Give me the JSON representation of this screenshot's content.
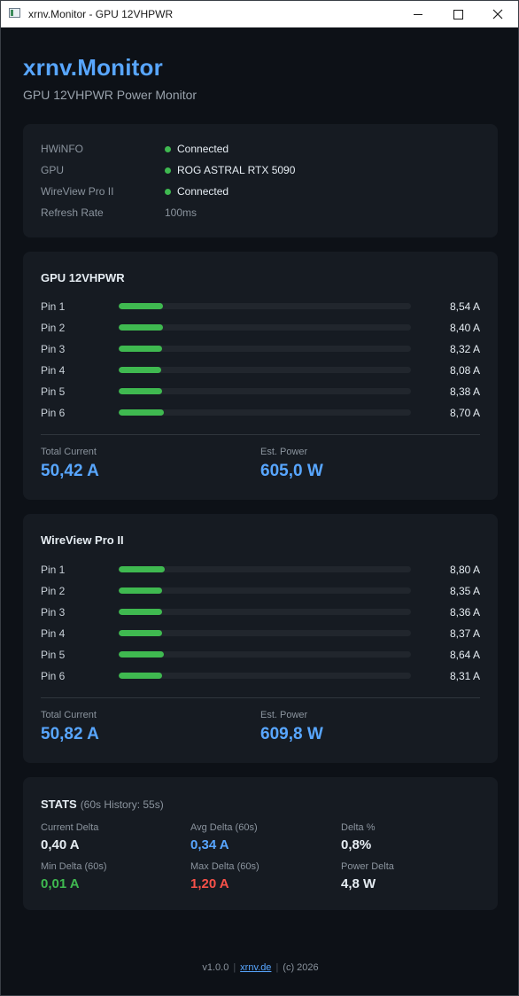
{
  "window": {
    "title": "xrnv.Monitor - GPU 12VHPWR"
  },
  "header": {
    "title": "xrnv.Monitor",
    "subtitle": "GPU 12VHPWR Power Monitor"
  },
  "status": [
    {
      "label": "HWiNFO",
      "value": "Connected",
      "indicator": "green"
    },
    {
      "label": "GPU",
      "value": "ROG ASTRAL RTX 5090",
      "indicator": "green"
    },
    {
      "label": "WireView Pro II",
      "value": "Connected",
      "indicator": "green"
    },
    {
      "label": "Refresh Rate",
      "value": "100ms",
      "indicator": null
    }
  ],
  "gpu": {
    "title": "GPU 12VHPWR",
    "pins": [
      {
        "label": "Pin 1",
        "value": "8,54 A",
        "amps": 8.54
      },
      {
        "label": "Pin 2",
        "value": "8,40 A",
        "amps": 8.4
      },
      {
        "label": "Pin 3",
        "value": "8,32 A",
        "amps": 8.32
      },
      {
        "label": "Pin 4",
        "value": "8,08 A",
        "amps": 8.08
      },
      {
        "label": "Pin 5",
        "value": "8,38 A",
        "amps": 8.38
      },
      {
        "label": "Pin 6",
        "value": "8,70 A",
        "amps": 8.7
      }
    ],
    "total_label": "Total Current",
    "total_value": "50,42 A",
    "power_label": "Est. Power",
    "power_value": "605,0 W"
  },
  "wireview": {
    "title": "WireView Pro II",
    "pins": [
      {
        "label": "Pin 1",
        "value": "8,80 A",
        "amps": 8.8
      },
      {
        "label": "Pin 2",
        "value": "8,35 A",
        "amps": 8.35
      },
      {
        "label": "Pin 3",
        "value": "8,36 A",
        "amps": 8.36
      },
      {
        "label": "Pin 4",
        "value": "8,37 A",
        "amps": 8.37
      },
      {
        "label": "Pin 5",
        "value": "8,64 A",
        "amps": 8.64
      },
      {
        "label": "Pin 6",
        "value": "8,31 A",
        "amps": 8.31
      }
    ],
    "total_label": "Total Current",
    "total_value": "50,82 A",
    "power_label": "Est. Power",
    "power_value": "609,8 W"
  },
  "bar_scale_max_amps": 56,
  "stats": {
    "title": "STATS",
    "history": "(60s History: 55s)",
    "items": [
      {
        "label": "Current Delta",
        "value": "0,40 A",
        "color": "#e6edf3"
      },
      {
        "label": "Avg Delta (60s)",
        "value": "0,34 A",
        "color": "#58a6ff"
      },
      {
        "label": "Delta %",
        "value": "0,8%",
        "color": "#e6edf3"
      },
      {
        "label": "Min Delta (60s)",
        "value": "0,01 A",
        "color": "#3fb950"
      },
      {
        "label": "Max Delta (60s)",
        "value": "1,20 A",
        "color": "#f85149"
      },
      {
        "label": "Power Delta",
        "value": "4,8 W",
        "color": "#e6edf3"
      }
    ]
  },
  "footer": {
    "version": "v1.0.0",
    "link": "xrnv.de",
    "copyright": "(c) 2026"
  },
  "colors": {
    "accent": "#58a6ff",
    "ok": "#3fb950",
    "bad": "#f85149",
    "background": "#0d1117",
    "card": "#161b22"
  }
}
